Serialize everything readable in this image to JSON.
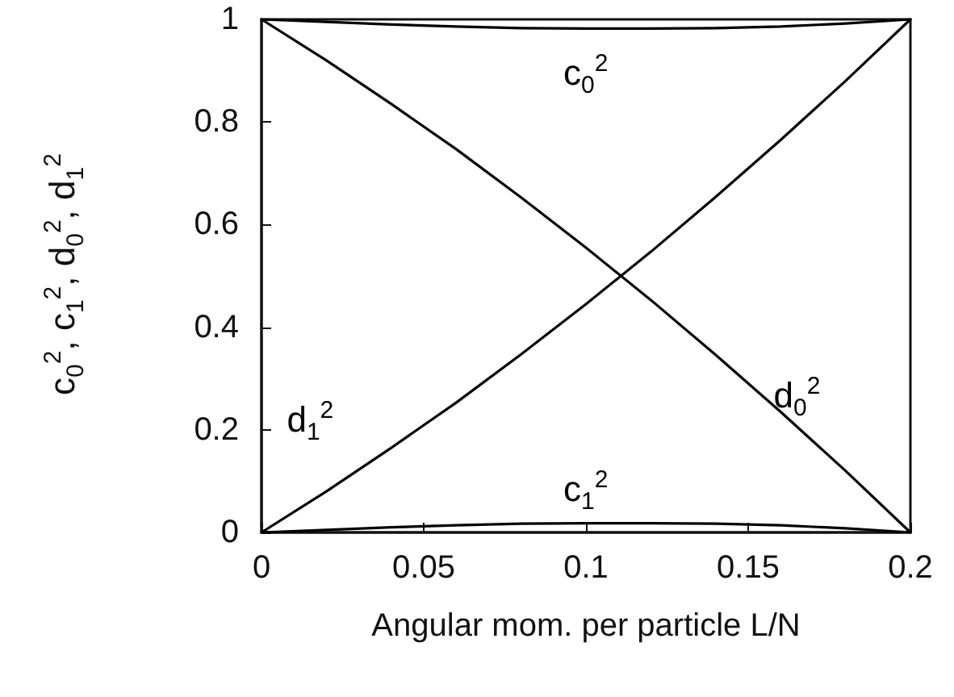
{
  "chart_data": {
    "type": "line",
    "xlabel": "Angular mom. per particle L/N",
    "ylabel": "c$_{0}$$^{2}$, c$_{1}$$^{2}$, d$_{0}$$^{2}$, d$_{1}$$^{2}$",
    "x": [
      0,
      0.02,
      0.04,
      0.06,
      0.08,
      0.1,
      0.12,
      0.14,
      0.16,
      0.18,
      0.2
    ],
    "series": [
      {
        "name": "c$_{0}$$^{2}$",
        "color": "#000000",
        "values": [
          1,
          0.995,
          0.99,
          0.986,
          0.983,
          0.982,
          0.982,
          0.983,
          0.986,
          0.992,
          1
        ]
      },
      {
        "name": "c$_{1}$$^{2}$",
        "color": "#000000",
        "values": [
          0,
          0.005,
          0.01,
          0.014,
          0.017,
          0.018,
          0.018,
          0.017,
          0.014,
          0.008,
          0
        ]
      },
      {
        "name": "d$_{0}$$^{2}$",
        "color": "#000000",
        "values": [
          1,
          0.92,
          0.835,
          0.747,
          0.653,
          0.555,
          0.453,
          0.346,
          0.235,
          0.12,
          0
        ]
      },
      {
        "name": "d$_{1}$$^{2}$",
        "color": "#000000",
        "values": [
          0,
          0.08,
          0.165,
          0.253,
          0.347,
          0.445,
          0.547,
          0.654,
          0.765,
          0.88,
          1
        ]
      }
    ],
    "xlim": [
      0,
      0.2
    ],
    "xticks": [
      0,
      0.05,
      0.1,
      0.15,
      0.2
    ],
    "ylim": [
      0,
      1
    ],
    "yticks": [
      0,
      0.2,
      0.4,
      0.6,
      0.8,
      1
    ],
    "grid": false,
    "legend": false,
    "marker": "none",
    "line_style": "solid"
  }
}
